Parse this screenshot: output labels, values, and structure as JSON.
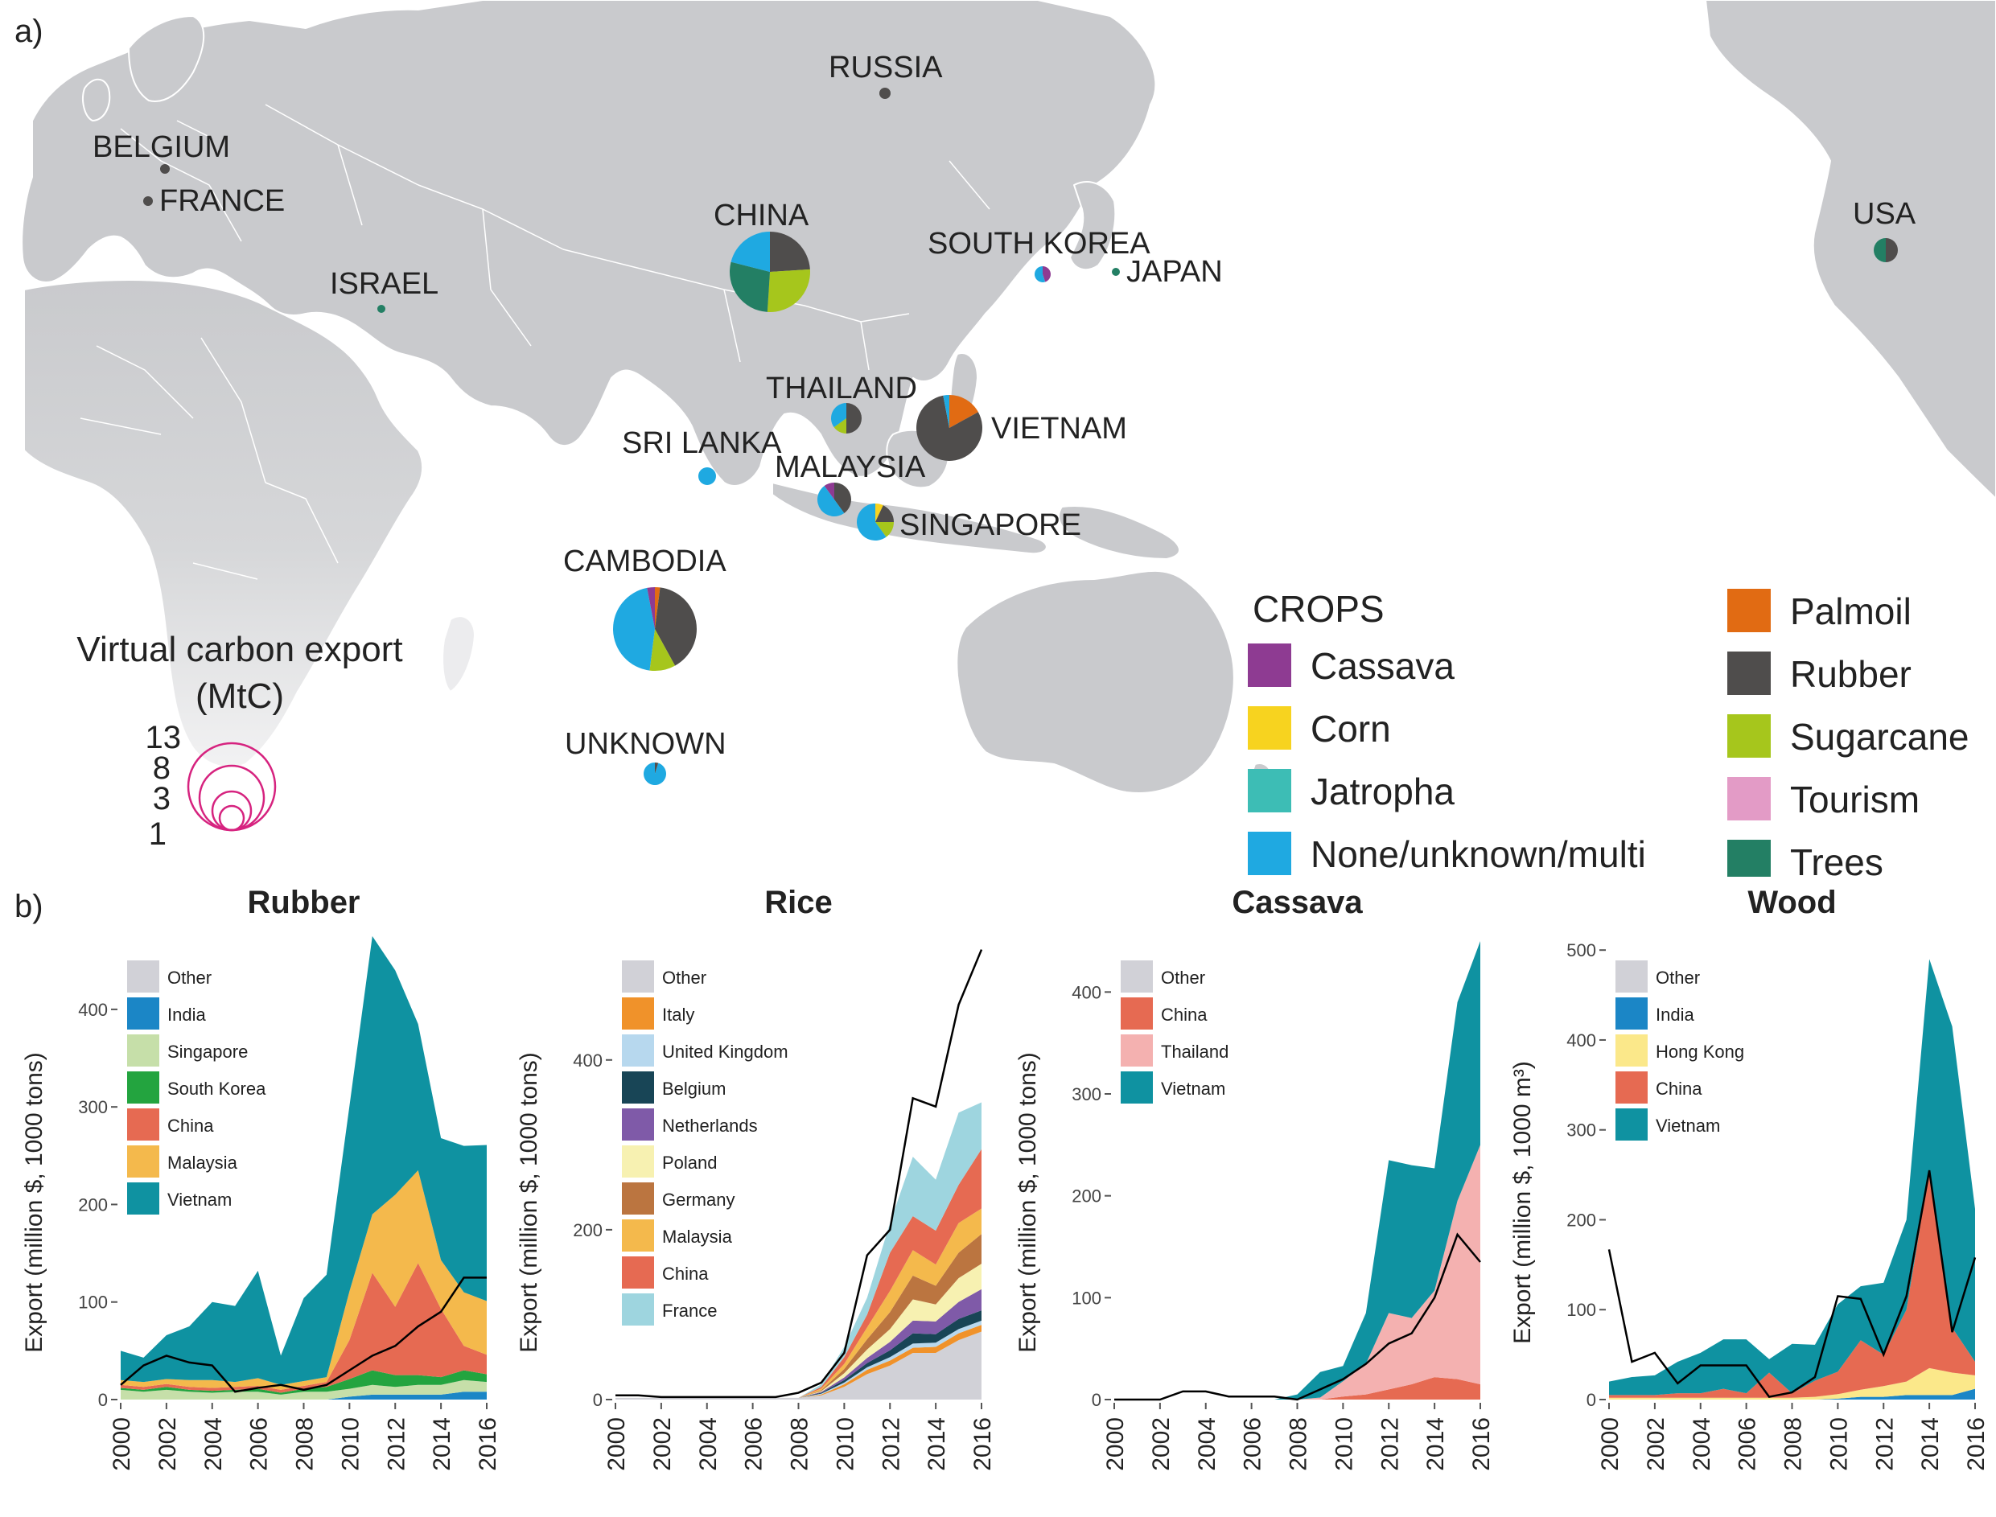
{
  "colors": {
    "Cassava": "#8e3b92",
    "Corn": "#f7d31f",
    "Jatropha": "#3dbdb5",
    "None/unknown/multi": "#1fa9e1",
    "Palmoil": "#e16b13",
    "Rubber": "#4f4d4c",
    "Sugarcane": "#a6c61c",
    "Tourism": "#e39bc6",
    "Trees": "#237f64",
    "map_land": "#c9cacd",
    "dot": "#4f4d4c",
    "scale_circle": "#d6237f",
    "line": "#000000",
    "Other": "#d1d1d7",
    "India": "#1b86c6",
    "Singapore": "#c6dfa9",
    "South Korea": "#23a43f",
    "China": "#e66a52",
    "Malaysia": "#f4b94c",
    "Vietnam": "#0f92a1",
    "Italy": "#f0922a",
    "United Kingdom": "#b7d8ee",
    "Belgium": "#184556",
    "Netherlands": "#7f5aa8",
    "Poland": "#f7f1b1",
    "Germany": "#bb7540",
    "France": "#9ed5df",
    "Thailand": "#f4b1b0",
    "Hong Kong": "#fbe88a"
  },
  "panel_a": {
    "label": "a)",
    "legend_title": "CROPS",
    "crops": [
      "Cassava",
      "Corn",
      "Jatropha",
      "None/unknown/multi",
      "Palmoil",
      "Rubber",
      "Sugarcane",
      "Tourism",
      "Trees"
    ],
    "size_title_1": "Virtual carbon export",
    "size_title_2": "(MtC)",
    "size_values": [
      "13",
      "8",
      "3",
      "1"
    ],
    "countries": [
      {
        "name": "RUSSIA",
        "slices": []
      },
      {
        "name": "BELGIUM",
        "slices": []
      },
      {
        "name": "FRANCE",
        "slices": []
      },
      {
        "name": "ISRAEL",
        "slices": []
      },
      {
        "name": "CHINA",
        "slices": [
          {
            "crop": "Rubber",
            "value": 0.24
          },
          {
            "crop": "Sugarcane",
            "value": 0.27
          },
          {
            "crop": "Trees",
            "value": 0.28
          },
          {
            "crop": "None/unknown/multi",
            "value": 0.21
          }
        ]
      },
      {
        "name": "SOUTH KOREA",
        "slices": [
          {
            "crop": "Cassava",
            "value": 0.45
          },
          {
            "crop": "None/unknown/multi",
            "value": 0.55
          }
        ]
      },
      {
        "name": "JAPAN",
        "slices": []
      },
      {
        "name": "USA",
        "slices": [
          {
            "crop": "Rubber",
            "value": 0.5
          },
          {
            "crop": "Trees",
            "value": 0.5
          }
        ]
      },
      {
        "name": "THAILAND",
        "slices": [
          {
            "crop": "Rubber",
            "value": 0.5
          },
          {
            "crop": "Sugarcane",
            "value": 0.15
          },
          {
            "crop": "None/unknown/multi",
            "value": 0.35
          }
        ]
      },
      {
        "name": "VIETNAM",
        "slices": [
          {
            "crop": "Palmoil",
            "value": 0.17
          },
          {
            "crop": "Rubber",
            "value": 0.8
          },
          {
            "crop": "None/unknown/multi",
            "value": 0.03
          }
        ]
      },
      {
        "name": "SRI LANKA",
        "slices": [
          {
            "crop": "None/unknown/multi",
            "value": 1.0
          }
        ]
      },
      {
        "name": "MALAYSIA",
        "slices": [
          {
            "crop": "Rubber",
            "value": 0.4
          },
          {
            "crop": "None/unknown/multi",
            "value": 0.5
          },
          {
            "crop": "Cassava",
            "value": 0.1
          }
        ]
      },
      {
        "name": "SINGAPORE",
        "slices": [
          {
            "crop": "Corn",
            "value": 0.07
          },
          {
            "crop": "Rubber",
            "value": 0.18
          },
          {
            "crop": "Sugarcane",
            "value": 0.15
          },
          {
            "crop": "None/unknown/multi",
            "value": 0.6
          }
        ]
      },
      {
        "name": "CAMBODIA",
        "slices": [
          {
            "crop": "Palmoil",
            "value": 0.02
          },
          {
            "crop": "Rubber",
            "value": 0.4
          },
          {
            "crop": "Sugarcane",
            "value": 0.1
          },
          {
            "crop": "None/unknown/multi",
            "value": 0.45
          },
          {
            "crop": "Cassava",
            "value": 0.03
          }
        ]
      },
      {
        "name": "UNKNOWN",
        "slices": [
          {
            "crop": "Rubber",
            "value": 0.05
          },
          {
            "crop": "None/unknown/multi",
            "value": 0.95
          }
        ]
      }
    ]
  },
  "panel_b": {
    "label": "b)"
  },
  "chart_data": [
    {
      "type": "area",
      "title": "Rubber",
      "ylabel": "Export (million $, 1000 tons)",
      "x": [
        2000,
        2001,
        2002,
        2003,
        2004,
        2005,
        2006,
        2007,
        2008,
        2009,
        2010,
        2011,
        2012,
        2013,
        2014,
        2015,
        2016
      ],
      "xticks": [
        "2000",
        "2002",
        "2004",
        "2006",
        "2008",
        "2010",
        "2012",
        "2014",
        "2016"
      ],
      "yticks": [
        "0",
        "100",
        "200",
        "300",
        "400"
      ],
      "ylim": [
        0,
        470
      ],
      "series": [
        {
          "name": "India",
          "values": [
            0,
            0,
            0,
            0,
            0,
            0,
            0,
            0,
            0,
            0,
            3,
            5,
            5,
            5,
            5,
            8,
            8
          ]
        },
        {
          "name": "Singapore",
          "values": [
            10,
            8,
            10,
            8,
            7,
            8,
            8,
            5,
            8,
            8,
            8,
            10,
            8,
            10,
            10,
            12,
            10
          ]
        },
        {
          "name": "South Korea",
          "values": [
            2,
            2,
            3,
            2,
            2,
            2,
            3,
            2,
            3,
            5,
            10,
            15,
            12,
            10,
            8,
            10,
            8
          ]
        },
        {
          "name": "China",
          "values": [
            3,
            3,
            3,
            3,
            3,
            3,
            3,
            3,
            3,
            5,
            40,
            100,
            70,
            115,
            70,
            25,
            20
          ]
        },
        {
          "name": "Malaysia",
          "values": [
            5,
            5,
            5,
            7,
            8,
            5,
            8,
            5,
            5,
            5,
            50,
            60,
            115,
            95,
            50,
            55,
            55
          ]
        },
        {
          "name": "Vietnam",
          "values": [
            30,
            25,
            45,
            55,
            80,
            78,
            110,
            30,
            85,
            105,
            190,
            285,
            230,
            150,
            125,
            150,
            160
          ]
        },
        {
          "name": "Other",
          "values": [
            0,
            0,
            0,
            0,
            0,
            0,
            0,
            0,
            0,
            0,
            0,
            0,
            0,
            0,
            0,
            0,
            0
          ]
        }
      ],
      "line": [
        15,
        35,
        45,
        38,
        35,
        8,
        12,
        15,
        10,
        15,
        30,
        45,
        55,
        75,
        90,
        125,
        125
      ]
    },
    {
      "type": "area",
      "title": "Rice",
      "ylabel": "Export (million $, 1000 tons)",
      "x": [
        2000,
        2001,
        2002,
        2003,
        2004,
        2005,
        2006,
        2007,
        2008,
        2009,
        2010,
        2011,
        2012,
        2013,
        2014,
        2015,
        2016
      ],
      "xticks": [
        "2000",
        "2002",
        "2004",
        "2006",
        "2008",
        "2010",
        "2012",
        "2014",
        "2016"
      ],
      "yticks": [
        "0",
        "200",
        "400"
      ],
      "ylim": [
        0,
        540
      ],
      "series": [
        {
          "name": "Other",
          "values": [
            2,
            2,
            2,
            2,
            2,
            2,
            2,
            2,
            2,
            5,
            15,
            30,
            40,
            55,
            55,
            70,
            80
          ]
        },
        {
          "name": "Italy",
          "values": [
            0,
            0,
            0,
            0,
            0,
            0,
            0,
            0,
            0,
            1,
            3,
            5,
            6,
            6,
            7,
            8,
            8
          ]
        },
        {
          "name": "United Kingdom",
          "values": [
            0,
            0,
            0,
            0,
            0,
            0,
            0,
            0,
            0,
            1,
            2,
            3,
            4,
            5,
            5,
            5,
            5
          ]
        },
        {
          "name": "Belgium",
          "values": [
            0,
            0,
            0,
            0,
            0,
            0,
            0,
            0,
            0,
            1,
            3,
            5,
            8,
            12,
            10,
            12,
            12
          ]
        },
        {
          "name": "Netherlands",
          "values": [
            0,
            0,
            0,
            0,
            0,
            0,
            0,
            0,
            0,
            1,
            3,
            6,
            10,
            15,
            15,
            20,
            25
          ]
        },
        {
          "name": "Poland",
          "values": [
            0,
            0,
            0,
            0,
            0,
            0,
            0,
            0,
            0,
            1,
            5,
            10,
            15,
            25,
            20,
            28,
            30
          ]
        },
        {
          "name": "Germany",
          "values": [
            0,
            0,
            0,
            0,
            0,
            0,
            0,
            0,
            0,
            1,
            5,
            12,
            20,
            28,
            22,
            30,
            35
          ]
        },
        {
          "name": "Malaysia",
          "values": [
            0,
            0,
            0,
            0,
            0,
            0,
            0,
            0,
            0,
            2,
            6,
            14,
            25,
            30,
            25,
            35,
            30
          ]
        },
        {
          "name": "China",
          "values": [
            0,
            0,
            0,
            0,
            0,
            0,
            0,
            0,
            0,
            2,
            8,
            15,
            45,
            40,
            40,
            45,
            70
          ]
        },
        {
          "name": "France",
          "values": [
            0,
            0,
            0,
            0,
            0,
            0,
            0,
            0,
            0,
            3,
            12,
            20,
            35,
            70,
            60,
            85,
            55
          ]
        }
      ],
      "line": [
        5,
        5,
        3,
        3,
        3,
        3,
        3,
        3,
        8,
        20,
        55,
        170,
        200,
        355,
        345,
        465,
        530
      ]
    },
    {
      "type": "area",
      "title": "Cassava",
      "ylabel": "Export (million $, 1000 tons)",
      "x": [
        2000,
        2001,
        2002,
        2003,
        2004,
        2005,
        2006,
        2007,
        2008,
        2009,
        2010,
        2011,
        2012,
        2013,
        2014,
        2015,
        2016
      ],
      "xticks": [
        "2000",
        "2002",
        "2004",
        "2006",
        "2008",
        "2010",
        "2012",
        "2014",
        "2016"
      ],
      "yticks": [
        "0",
        "100",
        "200",
        "300",
        "400"
      ],
      "ylim": [
        0,
        450
      ],
      "series": [
        {
          "name": "Other",
          "values": [
            0,
            0,
            0,
            0,
            0,
            0,
            0,
            0,
            0,
            0,
            0,
            0,
            0,
            0,
            0,
            0,
            0
          ]
        },
        {
          "name": "China",
          "values": [
            0,
            0,
            0,
            0,
            0,
            0,
            0,
            0,
            0,
            0,
            3,
            5,
            10,
            15,
            22,
            20,
            15
          ]
        },
        {
          "name": "Thailand",
          "values": [
            0,
            0,
            0,
            0,
            0,
            0,
            0,
            0,
            0,
            2,
            15,
            30,
            75,
            65,
            85,
            175,
            235
          ]
        },
        {
          "name": "Vietnam",
          "values": [
            0,
            0,
            0,
            0,
            0,
            0,
            0,
            0,
            5,
            25,
            15,
            50,
            150,
            150,
            120,
            195,
            200
          ]
        }
      ],
      "line": [
        0,
        0,
        0,
        8,
        8,
        3,
        3,
        3,
        0,
        10,
        20,
        35,
        55,
        65,
        100,
        162,
        135
      ]
    },
    {
      "type": "area",
      "title": "Wood",
      "ylabel": "Export (million $, 1000 m³)",
      "x": [
        2000,
        2001,
        2002,
        2003,
        2004,
        2005,
        2006,
        2007,
        2008,
        2009,
        2010,
        2011,
        2012,
        2013,
        2014,
        2015,
        2016
      ],
      "xticks": [
        "2000",
        "2002",
        "2004",
        "2006",
        "2008",
        "2010",
        "2012",
        "2014",
        "2016"
      ],
      "yticks": [
        "0",
        "100",
        "200",
        "300",
        "400",
        "500"
      ],
      "ylim": [
        0,
        510
      ],
      "series": [
        {
          "name": "Other",
          "values": [
            0,
            0,
            0,
            0,
            0,
            0,
            0,
            0,
            0,
            0,
            0,
            0,
            0,
            0,
            0,
            0,
            0
          ]
        },
        {
          "name": "India",
          "values": [
            0,
            0,
            0,
            0,
            0,
            0,
            0,
            0,
            0,
            0,
            1,
            3,
            3,
            5,
            5,
            5,
            12
          ]
        },
        {
          "name": "Hong Kong",
          "values": [
            2,
            2,
            2,
            2,
            2,
            2,
            2,
            2,
            2,
            3,
            5,
            8,
            12,
            15,
            30,
            25,
            15
          ]
        },
        {
          "name": "China",
          "values": [
            3,
            3,
            3,
            5,
            5,
            10,
            5,
            28,
            5,
            18,
            25,
            55,
            35,
            80,
            220,
            50,
            15
          ]
        },
        {
          "name": "Vietnam",
          "values": [
            15,
            20,
            22,
            35,
            45,
            55,
            60,
            15,
            55,
            40,
            75,
            60,
            80,
            100,
            235,
            335,
            170
          ]
        }
      ],
      "line": [
        167,
        42,
        52,
        18,
        38,
        38,
        38,
        3,
        8,
        25,
        115,
        112,
        50,
        115,
        255,
        75,
        158
      ]
    }
  ]
}
